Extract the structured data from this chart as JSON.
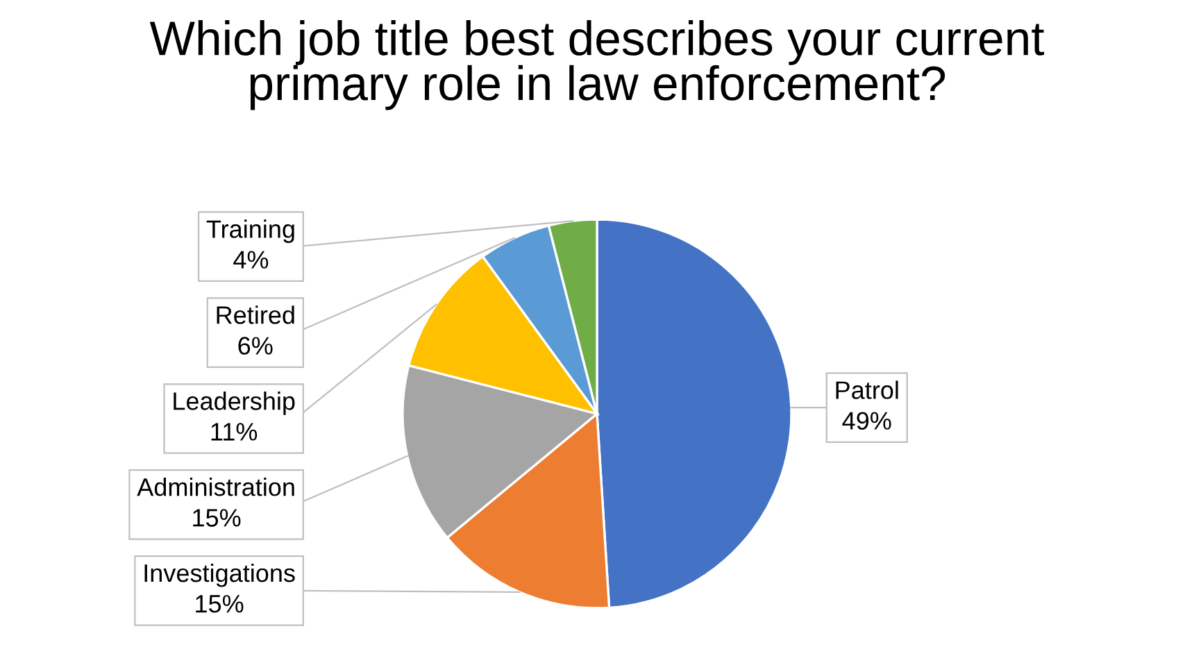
{
  "chart_data": {
    "type": "pie",
    "title": "Which job title best describes your current\nprimary role in law enforcement?",
    "categories": [
      "Patrol",
      "Investigations",
      "Administration",
      "Leadership",
      "Retired",
      "Training"
    ],
    "values": [
      49,
      15,
      15,
      11,
      6,
      4
    ],
    "colors": [
      "#4472c4",
      "#ed7d31",
      "#a5a5a5",
      "#ffc000",
      "#5b9bd5",
      "#70ad47"
    ],
    "value_labels": [
      "49%",
      "15%",
      "15%",
      "11%",
      "6%",
      "4%"
    ]
  }
}
